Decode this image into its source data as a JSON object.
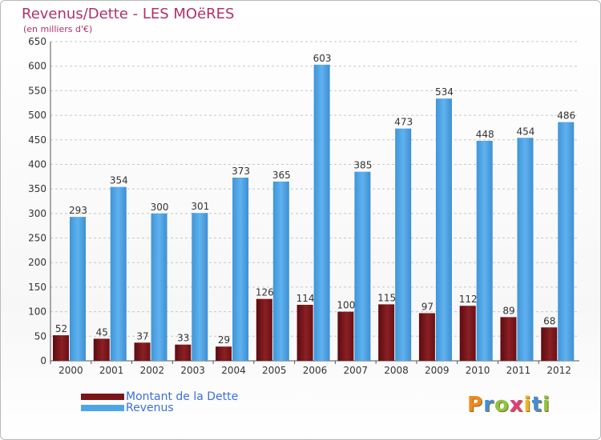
{
  "chart_data": {
    "type": "bar",
    "title": "Revenus/Dette - LES MOëRES",
    "subtitle": "(en milliers d'€)",
    "categories": [
      "2000",
      "2001",
      "2002",
      "2003",
      "2004",
      "2005",
      "2006",
      "2007",
      "2008",
      "2009",
      "2010",
      "2011",
      "2012"
    ],
    "series": [
      {
        "name": "Montant de la Dette",
        "values": [
          52,
          45,
          37,
          33,
          29,
          126,
          114,
          100,
          115,
          97,
          112,
          89,
          68
        ],
        "color": "#7a1518"
      },
      {
        "name": "Revenus",
        "values": [
          293,
          354,
          300,
          301,
          373,
          365,
          603,
          385,
          473,
          534,
          448,
          454,
          486
        ],
        "color": "#4fa6e6"
      }
    ],
    "ylim": [
      0,
      650
    ],
    "yticks": [
      0,
      50,
      100,
      150,
      200,
      250,
      300,
      350,
      400,
      450,
      500,
      550,
      600,
      650
    ],
    "grid": true,
    "legend": "bottom-left"
  },
  "legend": {
    "debt_label": "Montant de la Dette",
    "revenue_label": "Revenus"
  },
  "brand": {
    "letters": [
      "P",
      "r",
      "o",
      "x",
      "i",
      "t",
      "i"
    ],
    "colors": [
      "#f08a1c",
      "#3f8fd8",
      "#8cc63f",
      "#e33b7a",
      "#f0b41c",
      "#3f8fd8",
      "#8cc63f"
    ]
  }
}
